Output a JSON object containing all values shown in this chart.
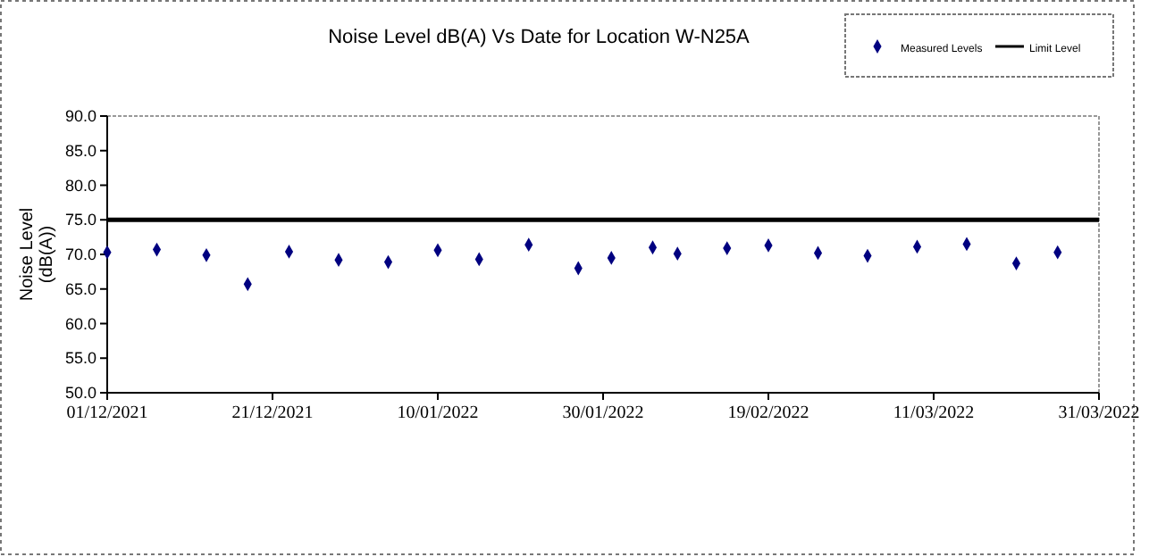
{
  "chart_data": {
    "type": "scatter",
    "title": "Noise Level dB(A) Vs Date for Location W-N25A",
    "ylabel": "Noise Level\n(dB(A))",
    "xlim": [
      "2021-12-01",
      "2022-03-31"
    ],
    "xticks": [
      {
        "value": "2021-12-01",
        "label": "01/12/2021"
      },
      {
        "value": "2021-12-21",
        "label": "21/12/2021"
      },
      {
        "value": "2022-01-10",
        "label": "10/01/2022"
      },
      {
        "value": "2022-01-30",
        "label": "30/01/2022"
      },
      {
        "value": "2022-02-19",
        "label": "19/02/2022"
      },
      {
        "value": "2022-03-11",
        "label": "11/03/2022"
      },
      {
        "value": "2022-03-31",
        "label": "31/03/2022"
      }
    ],
    "ylim": [
      50,
      90
    ],
    "yticks": [
      {
        "value": 50,
        "label": "50.0"
      },
      {
        "value": 55,
        "label": "55.0"
      },
      {
        "value": 60,
        "label": "60.0"
      },
      {
        "value": 65,
        "label": "65.0"
      },
      {
        "value": 70,
        "label": "70.0"
      },
      {
        "value": 75,
        "label": "75.0"
      },
      {
        "value": 80,
        "label": "80.0"
      },
      {
        "value": 85,
        "label": "85.0"
      },
      {
        "value": 90,
        "label": "90.0"
      }
    ],
    "grid": false,
    "legend": "top right",
    "series": [
      {
        "name": "Measured Levels",
        "marker": "diamond",
        "color": "#000080",
        "x": [
          "2021-12-01",
          "2021-12-07",
          "2021-12-13",
          "2021-12-18",
          "2021-12-23",
          "2021-12-29",
          "2022-01-04",
          "2022-01-10",
          "2022-01-15",
          "2022-01-21",
          "2022-01-27",
          "2022-01-31",
          "2022-02-05",
          "2022-02-08",
          "2022-02-14",
          "2022-02-19",
          "2022-02-25",
          "2022-03-03",
          "2022-03-09",
          "2022-03-15",
          "2022-03-21",
          "2022-03-26"
        ],
        "values": [
          70.3,
          70.7,
          69.9,
          65.7,
          70.4,
          69.2,
          68.9,
          70.6,
          69.3,
          71.4,
          68.0,
          69.5,
          71.0,
          70.1,
          70.9,
          71.3,
          70.2,
          69.8,
          71.1,
          71.5,
          68.7,
          70.3
        ]
      },
      {
        "name": "Limit Level",
        "type": "line",
        "color": "#000000",
        "line_style": "solid",
        "x": [
          "2021-12-01",
          "2022-03-31"
        ],
        "values": [
          75,
          75
        ]
      }
    ]
  }
}
